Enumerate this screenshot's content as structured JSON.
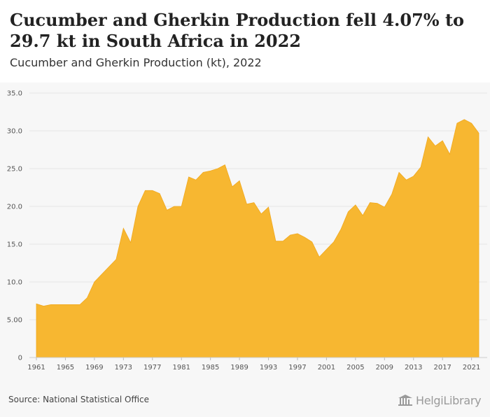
{
  "header": {
    "title": "Cucumber and Gherkin Production fell 4.07% to 29.7 kt in South Africa in 2022",
    "subtitle": "Cucumber and Gherkin Production (kt), 2022"
  },
  "footer": {
    "source": "Source: National Statistical Office",
    "logo": "HelgiLibrary"
  },
  "colors": {
    "area": "#f7b731",
    "background": "#f7f7f7",
    "grid": "#e6e6e6"
  },
  "chart_data": {
    "type": "area",
    "x": [
      1961,
      1962,
      1963,
      1964,
      1965,
      1966,
      1967,
      1968,
      1969,
      1970,
      1971,
      1972,
      1973,
      1974,
      1975,
      1976,
      1977,
      1978,
      1979,
      1980,
      1981,
      1982,
      1983,
      1984,
      1985,
      1986,
      1987,
      1988,
      1989,
      1990,
      1991,
      1992,
      1993,
      1994,
      1995,
      1996,
      1997,
      1998,
      1999,
      2000,
      2001,
      2002,
      2003,
      2004,
      2005,
      2006,
      2007,
      2008,
      2009,
      2010,
      2011,
      2012,
      2013,
      2014,
      2015,
      2016,
      2017,
      2018,
      2019,
      2020,
      2021,
      2022
    ],
    "values": [
      7.1,
      6.8,
      7.0,
      7.0,
      7.0,
      7.0,
      7.0,
      7.9,
      10.0,
      11.0,
      12.0,
      13.0,
      17.1,
      15.2,
      20.0,
      22.1,
      22.1,
      21.7,
      19.5,
      20.0,
      20.0,
      23.9,
      23.5,
      24.5,
      24.7,
      25.0,
      25.5,
      22.6,
      23.4,
      20.3,
      20.5,
      19.0,
      19.9,
      15.4,
      15.4,
      16.2,
      16.4,
      15.9,
      15.3,
      13.3,
      14.3,
      15.3,
      17.0,
      19.3,
      20.2,
      18.8,
      20.5,
      20.4,
      19.9,
      21.6,
      24.5,
      23.5,
      24.0,
      25.2,
      29.2,
      28.0,
      28.7,
      26.9,
      31.0,
      31.5,
      31.0,
      29.7
    ],
    "x_ticks": [
      "1961",
      "1965",
      "1969",
      "1973",
      "1977",
      "1981",
      "1985",
      "1989",
      "1993",
      "1997",
      "2001",
      "2005",
      "2009",
      "2013",
      "2017",
      "2021"
    ],
    "y_ticks": [
      "0",
      "5.00",
      "10.0",
      "15.0",
      "20.0",
      "25.0",
      "30.0",
      "35.0"
    ],
    "ylim": [
      0,
      35
    ],
    "xlim": [
      1961,
      2022
    ],
    "grid": true
  }
}
